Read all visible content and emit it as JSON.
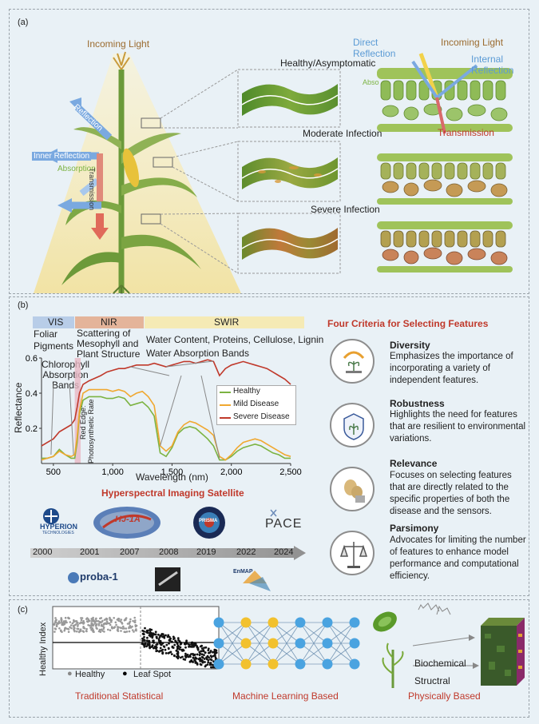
{
  "panel_a": {
    "label": "(a)",
    "incoming_light_left": "Incoming Light",
    "reflection": "Reflection",
    "inner_reflection": "Inner Reflection",
    "absorption": "Absorption",
    "transmission": "Transmission",
    "states": [
      "Healthy/Asymptomatic",
      "Moderate Infection",
      "Severe Infection"
    ],
    "direct_reflection": "Direct\nReflection",
    "incoming_light_right": "Incoming Light",
    "internal_reflection": "Internal\nReflection",
    "absorption_right": "Abso",
    "transmission_right": "Transmission"
  },
  "panel_b": {
    "label": "(b)",
    "bands": [
      {
        "name": "VIS",
        "desc": "Foliar\nPigments",
        "color": "#b8cde8"
      },
      {
        "name": "NIR",
        "desc": "Scattering of\nMesophyll and\nPlant Structure",
        "color": "#e4b49a"
      },
      {
        "name": "SWIR",
        "desc": "Water Content, Proteins, Cellulose, Lignin",
        "color": "#f5eab5"
      }
    ],
    "water_bands": "Water Absorption Bands",
    "chlorophyll": "Chlorophyll\nAbsorption\nBands",
    "red_edge": "Red Edge:",
    "photosynthetic": "Photosynthetic Rate",
    "satellite_title": "Hyperspectral Imaging Satellite",
    "timeline_years": [
      "2000",
      "2001",
      "2007",
      "2008",
      "2019",
      "2022",
      "2024"
    ],
    "satellites_top": [
      "HYPERION",
      "HJ-1A",
      "PRISMA",
      "PACE"
    ],
    "hyperion_sub": "TECHNOLOGIES",
    "satellites_bottom": [
      "proba-1",
      "EnMAP"
    ],
    "criteria_title": "Four Criteria for Selecting Features",
    "criteria": [
      {
        "title": "Diversity",
        "desc": "Emphasizes the importance of incorporating a variety of independent features."
      },
      {
        "title": "Robustness",
        "desc": "Highlights the need for features that are resilient to environmental variations."
      },
      {
        "title": "Relevance",
        "desc": "Focuses on selecting features that are directly related to the specific properties of both the disease and the sensors."
      },
      {
        "title": "Parsimony",
        "desc": "Advocates for limiting the number of features to enhance model performance and computational efficiency."
      }
    ]
  },
  "chart_data": {
    "type": "line",
    "xlabel": "Wavelength (nm)",
    "ylabel": "Reflectance",
    "xlim": [
      400,
      2500
    ],
    "ylim": [
      0,
      0.6
    ],
    "xticks": [
      "500",
      "1,000",
      "1,500",
      "2,000",
      "2,500"
    ],
    "yticks": [
      "0.2",
      "0.4",
      "0.6"
    ],
    "legend_position": "right",
    "series": [
      {
        "name": "Healthy",
        "color": "#7cb342",
        "x": [
          400,
          450,
          500,
          550,
          600,
          650,
          680,
          700,
          720,
          750,
          800,
          900,
          950,
          1000,
          1050,
          1100,
          1150,
          1200,
          1250,
          1300,
          1350,
          1400,
          1450,
          1500,
          1550,
          1600,
          1650,
          1700,
          1750,
          1800,
          1850,
          1900,
          1950,
          2000,
          2050,
          2100,
          2150,
          2200,
          2250,
          2300,
          2350,
          2400,
          2450,
          2500
        ],
        "y": [
          0.03,
          0.03,
          0.04,
          0.08,
          0.05,
          0.03,
          0.03,
          0.12,
          0.28,
          0.36,
          0.38,
          0.38,
          0.37,
          0.37,
          0.38,
          0.37,
          0.33,
          0.34,
          0.35,
          0.32,
          0.27,
          0.06,
          0.04,
          0.09,
          0.17,
          0.2,
          0.21,
          0.2,
          0.17,
          0.14,
          0.1,
          0.02,
          0.02,
          0.04,
          0.07,
          0.09,
          0.1,
          0.11,
          0.1,
          0.08,
          0.06,
          0.05,
          0.03,
          0.03
        ]
      },
      {
        "name": "Mild Disease",
        "color": "#f0a830",
        "x": [
          400,
          450,
          500,
          550,
          600,
          650,
          680,
          700,
          720,
          750,
          800,
          900,
          950,
          1000,
          1050,
          1100,
          1150,
          1200,
          1250,
          1300,
          1350,
          1400,
          1450,
          1500,
          1550,
          1600,
          1650,
          1700,
          1750,
          1800,
          1850,
          1900,
          1950,
          2000,
          2050,
          2100,
          2150,
          2200,
          2250,
          2300,
          2350,
          2400,
          2450,
          2500
        ],
        "y": [
          0.02,
          0.03,
          0.04,
          0.07,
          0.05,
          0.04,
          0.05,
          0.15,
          0.3,
          0.4,
          0.42,
          0.42,
          0.42,
          0.41,
          0.42,
          0.41,
          0.38,
          0.4,
          0.41,
          0.38,
          0.33,
          0.1,
          0.07,
          0.1,
          0.18,
          0.22,
          0.24,
          0.23,
          0.21,
          0.19,
          0.16,
          0.04,
          0.02,
          0.05,
          0.09,
          0.12,
          0.13,
          0.14,
          0.13,
          0.11,
          0.09,
          0.07,
          0.05,
          0.04
        ]
      },
      {
        "name": "Severe Disease",
        "color": "#c0392b",
        "x": [
          400,
          450,
          500,
          550,
          600,
          650,
          680,
          700,
          720,
          750,
          800,
          900,
          950,
          1000,
          1050,
          1100,
          1150,
          1200,
          1250,
          1300,
          1350,
          1400,
          1450,
          1500,
          1550,
          1600,
          1650,
          1700,
          1750,
          1800,
          1850,
          1900,
          1950,
          2000,
          2050,
          2100,
          2150,
          2200,
          2250,
          2300,
          2350,
          2400,
          2450,
          2500
        ],
        "y": [
          0.1,
          0.12,
          0.14,
          0.18,
          0.2,
          0.22,
          0.25,
          0.32,
          0.4,
          0.45,
          0.47,
          0.5,
          0.52,
          0.53,
          0.54,
          0.54,
          0.55,
          0.56,
          0.56,
          0.56,
          0.57,
          0.56,
          0.55,
          0.56,
          0.57,
          0.58,
          0.58,
          0.57,
          0.58,
          0.59,
          0.58,
          0.5,
          0.54,
          0.56,
          0.57,
          0.58,
          0.57,
          0.56,
          0.55,
          0.54,
          0.52,
          0.5,
          0.48,
          0.45
        ]
      }
    ]
  },
  "panel_c": {
    "label": "(c)",
    "y_axis": "Healthy Index",
    "legend_healthy": "Healthy",
    "legend_leaf": "Leaf Spot",
    "methods": [
      "Traditional Statistical",
      "Machine Learning Based",
      "Physically Based"
    ],
    "biochemical": "Biochemical",
    "structral": "Structral"
  }
}
